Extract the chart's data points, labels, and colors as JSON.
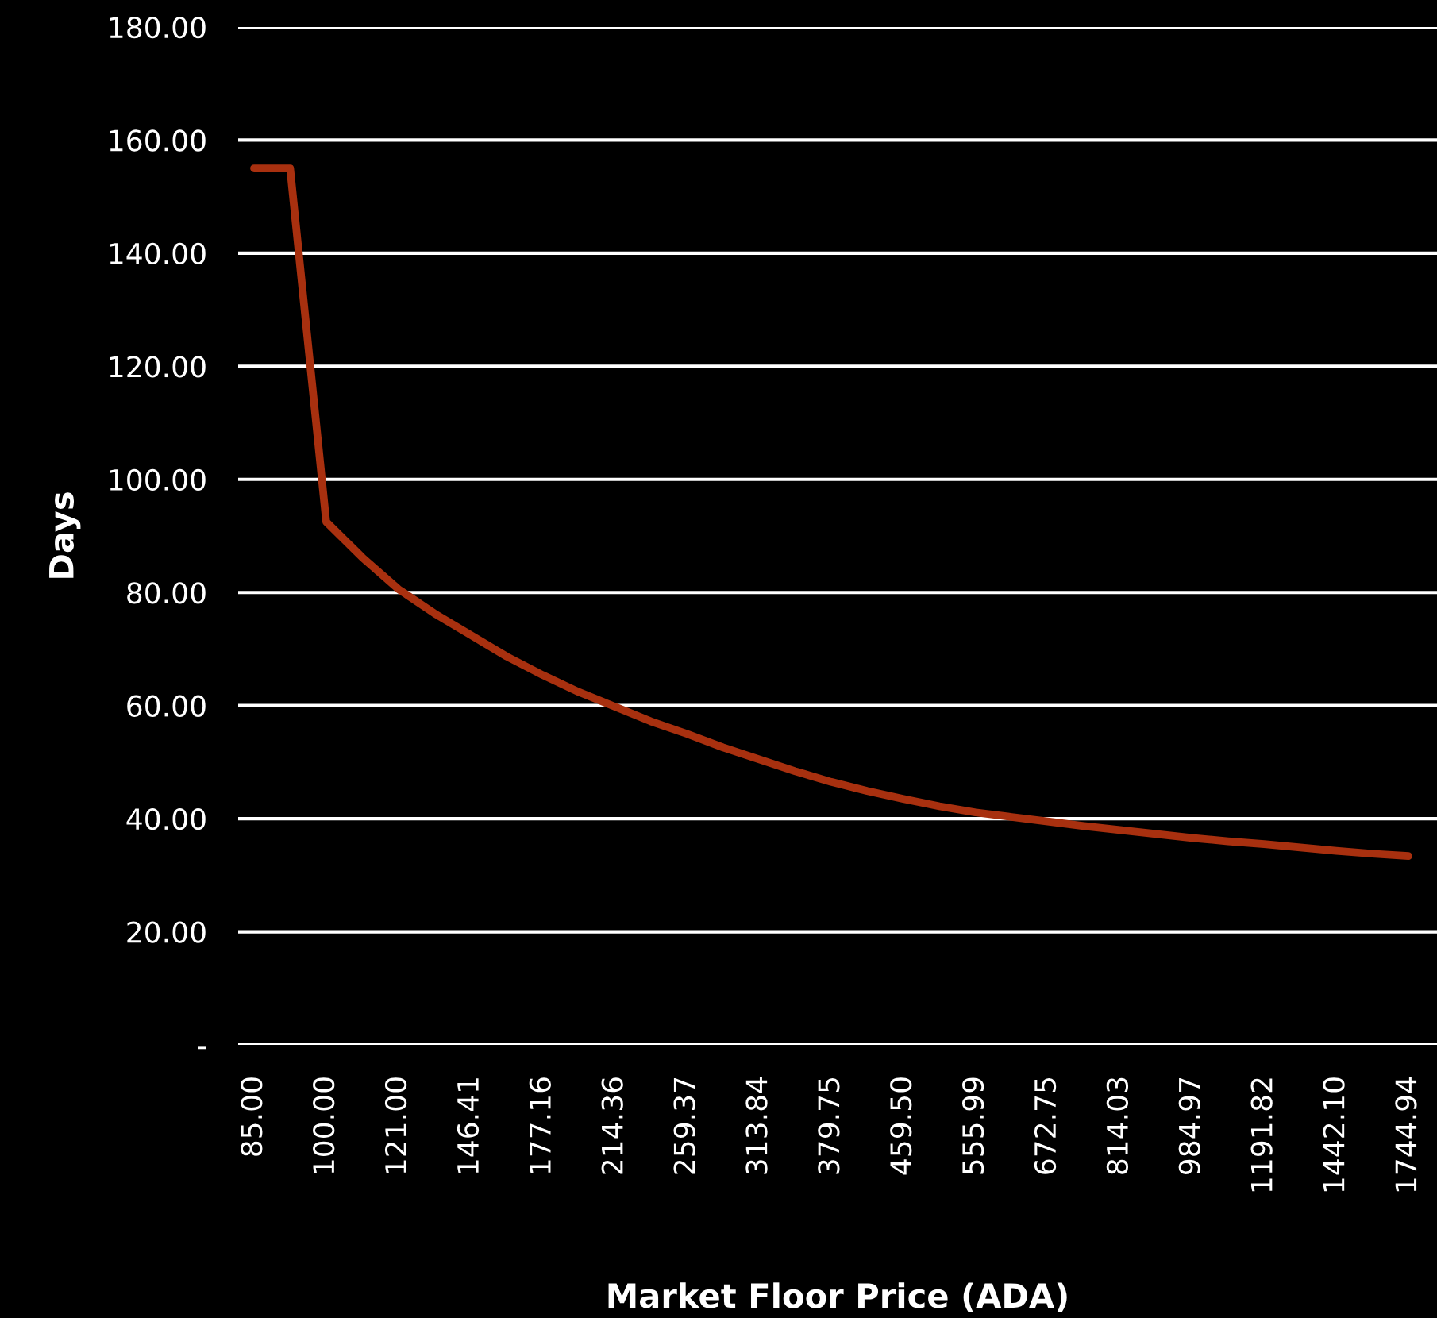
{
  "chart_data": {
    "type": "line",
    "xlabel": "Market Floor Price (ADA)",
    "ylabel": "Days",
    "categories": [
      "85.00",
      null,
      "100.00",
      null,
      "121.00",
      null,
      "146.41",
      null,
      "177.16",
      null,
      "214.36",
      null,
      "259.37",
      null,
      "313.84",
      null,
      "379.75",
      null,
      "459.50",
      null,
      "555.99",
      null,
      "672.75",
      null,
      "814.03",
      null,
      "984.97",
      null,
      "1191.82",
      null,
      "1442.10",
      null,
      "1744.94"
    ],
    "series": [
      {
        "color": "#a8300f",
        "values": [
          155,
          155,
          92.5,
          86.2,
          80.6,
          76.3,
          72.5,
          68.7,
          65.4,
          62.4,
          59.8,
          57.2,
          55,
          52.6,
          50.5,
          48.4,
          46.5,
          44.9,
          43.5,
          42.2,
          41.1,
          40.3,
          39.5,
          38.7,
          38,
          37.3,
          36.6,
          36,
          35.5,
          34.9,
          34.3,
          33.8,
          33.4
        ]
      }
    ],
    "ylim": [
      0,
      180
    ],
    "yticks": [
      {
        "value": 0,
        "label": "-"
      },
      {
        "value": 20,
        "label": "20.00"
      },
      {
        "value": 40,
        "label": "40.00"
      },
      {
        "value": 60,
        "label": "60.00"
      },
      {
        "value": 80,
        "label": "80.00"
      },
      {
        "value": 100,
        "label": "100.00"
      },
      {
        "value": 120,
        "label": "120.00"
      },
      {
        "value": 140,
        "label": "140.00"
      },
      {
        "value": 160,
        "label": "160.00"
      },
      {
        "value": 180,
        "label": "180.00"
      }
    ],
    "grid": "y",
    "marker": "none",
    "line_style": "solid"
  }
}
